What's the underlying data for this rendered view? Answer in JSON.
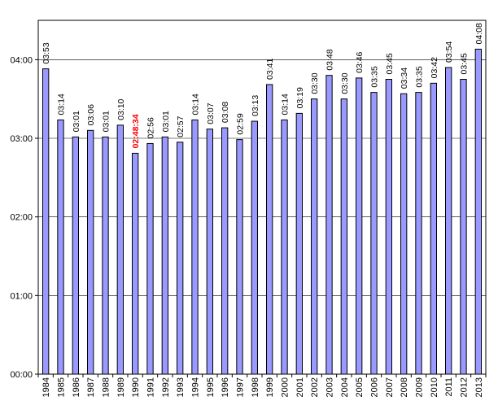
{
  "chart_data": {
    "type": "bar",
    "title": "",
    "xlabel": "",
    "ylabel": "",
    "ylim": [
      "00:00",
      "04:30"
    ],
    "y_ticks": [
      "00:00",
      "01:00",
      "02:00",
      "03:00",
      "04:00"
    ],
    "grid": "horizontal",
    "legend": "none",
    "bar_color": "#9999ff",
    "highlight_label_color": "#ff0000",
    "categories": [
      "1984",
      "1985",
      "1986",
      "1987",
      "1988",
      "1989",
      "1990",
      "1991",
      "1992",
      "1993",
      "1994",
      "1995",
      "1996",
      "1997",
      "1998",
      "1999",
      "2000",
      "2001",
      "2002",
      "2003",
      "2004",
      "2005",
      "2006",
      "2007",
      "2008",
      "2009",
      "2010",
      "2011",
      "2012",
      "2013"
    ],
    "values": [
      "03:53",
      "03:14",
      "03:01",
      "03:06",
      "03:01",
      "03:10",
      "02:48:34",
      "02:56",
      "03:01",
      "02:57",
      "03:14",
      "03:07",
      "03:08",
      "02:59",
      "03:13",
      "03:41",
      "03:14",
      "03:19",
      "03:30",
      "03:48",
      "03:30",
      "03:46",
      "03:35",
      "03:45",
      "03:34",
      "03:35",
      "03:42",
      "03:54",
      "03:45",
      "04:08"
    ],
    "highlighted_category": "1990"
  }
}
